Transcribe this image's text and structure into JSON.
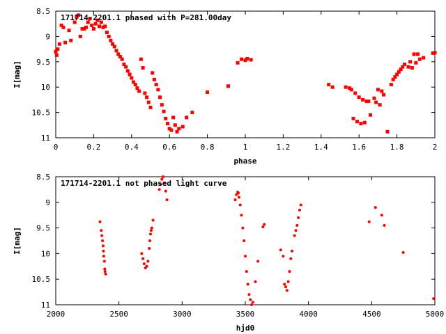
{
  "chart_data": [
    {
      "type": "scatter",
      "title": "171714-2201.1 phased with P=281.00day",
      "xlabel": "phase",
      "ylabel": "I[mag]",
      "xlim": [
        0,
        2
      ],
      "ylim": [
        11,
        8.5
      ],
      "y_inverted": true,
      "xticks": [
        "0",
        "0.2",
        "0.4",
        "0.6",
        "0.8",
        "1",
        "1.2",
        "1.4",
        "1.6",
        "1.8",
        "2"
      ],
      "yticks": [
        "8.5",
        "9",
        "9.5",
        "10",
        "10.5",
        "11"
      ],
      "grid": false,
      "marker_color": "#ff0000",
      "series": [
        {
          "points": [
            [
              0.0,
              9.3
            ],
            [
              0.005,
              9.37
            ],
            [
              0.01,
              9.25
            ],
            [
              0.02,
              9.15
            ],
            [
              0.03,
              8.78
            ],
            [
              0.04,
              8.82
            ],
            [
              0.05,
              9.12
            ],
            [
              0.07,
              8.88
            ],
            [
              0.08,
              9.08
            ],
            [
              0.1,
              8.72
            ],
            [
              0.11,
              8.62
            ],
            [
              0.12,
              8.58
            ],
            [
              0.13,
              9.0
            ],
            [
              0.14,
              8.85
            ],
            [
              0.15,
              8.85
            ],
            [
              0.16,
              8.82
            ],
            [
              0.17,
              8.72
            ],
            [
              0.18,
              8.65
            ],
            [
              0.19,
              8.78
            ],
            [
              0.2,
              8.85
            ],
            [
              0.21,
              8.75
            ],
            [
              0.22,
              8.68
            ],
            [
              0.23,
              8.8
            ],
            [
              0.24,
              8.72
            ],
            [
              0.25,
              8.82
            ],
            [
              0.26,
              8.8
            ],
            [
              0.27,
              8.92
            ],
            [
              0.28,
              9.0
            ],
            [
              0.29,
              9.08
            ],
            [
              0.3,
              9.15
            ],
            [
              0.31,
              9.2
            ],
            [
              0.32,
              9.28
            ],
            [
              0.33,
              9.35
            ],
            [
              0.34,
              9.4
            ],
            [
              0.35,
              9.45
            ],
            [
              0.36,
              9.55
            ],
            [
              0.37,
              9.6
            ],
            [
              0.38,
              9.68
            ],
            [
              0.39,
              9.75
            ],
            [
              0.4,
              9.82
            ],
            [
              0.41,
              9.9
            ],
            [
              0.42,
              9.95
            ],
            [
              0.43,
              10.02
            ],
            [
              0.44,
              10.08
            ],
            [
              0.45,
              9.45
            ],
            [
              0.46,
              9.62
            ],
            [
              0.47,
              10.12
            ],
            [
              0.48,
              10.2
            ],
            [
              0.49,
              10.3
            ],
            [
              0.5,
              10.4
            ],
            [
              0.51,
              9.72
            ],
            [
              0.52,
              9.85
            ],
            [
              0.53,
              9.95
            ],
            [
              0.54,
              10.05
            ],
            [
              0.55,
              10.2
            ],
            [
              0.56,
              10.35
            ],
            [
              0.57,
              10.48
            ],
            [
              0.58,
              10.62
            ],
            [
              0.59,
              10.72
            ],
            [
              0.6,
              10.82
            ],
            [
              0.61,
              10.85
            ],
            [
              0.62,
              10.6
            ],
            [
              0.63,
              10.75
            ],
            [
              0.64,
              10.88
            ],
            [
              0.65,
              10.82
            ],
            [
              0.67,
              10.78
            ],
            [
              0.69,
              10.6
            ],
            [
              0.72,
              10.5
            ],
            [
              0.8,
              10.1
            ],
            [
              0.91,
              9.98
            ],
            [
              0.96,
              9.52
            ],
            [
              0.98,
              9.45
            ],
            [
              1.0,
              9.47
            ],
            [
              1.01,
              9.44
            ],
            [
              1.03,
              9.46
            ],
            [
              1.44,
              9.95
            ],
            [
              1.46,
              10.0
            ],
            [
              1.53,
              10.0
            ],
            [
              1.55,
              10.02
            ],
            [
              1.56,
              10.05
            ],
            [
              1.57,
              10.62
            ],
            [
              1.58,
              10.12
            ],
            [
              1.59,
              10.68
            ],
            [
              1.6,
              10.2
            ],
            [
              1.61,
              10.72
            ],
            [
              1.62,
              10.25
            ],
            [
              1.63,
              10.7
            ],
            [
              1.64,
              10.28
            ],
            [
              1.65,
              10.28
            ],
            [
              1.66,
              10.55
            ],
            [
              1.68,
              10.22
            ],
            [
              1.69,
              10.3
            ],
            [
              1.7,
              10.05
            ],
            [
              1.71,
              10.35
            ],
            [
              1.72,
              10.08
            ],
            [
              1.73,
              10.15
            ],
            [
              1.75,
              10.88
            ],
            [
              1.77,
              9.95
            ],
            [
              1.78,
              9.85
            ],
            [
              1.79,
              9.8
            ],
            [
              1.8,
              9.75
            ],
            [
              1.81,
              9.7
            ],
            [
              1.82,
              9.65
            ],
            [
              1.83,
              9.6
            ],
            [
              1.84,
              9.55
            ],
            [
              1.86,
              9.6
            ],
            [
              1.87,
              9.5
            ],
            [
              1.88,
              9.62
            ],
            [
              1.89,
              9.35
            ],
            [
              1.9,
              9.52
            ],
            [
              1.91,
              9.35
            ],
            [
              1.92,
              9.45
            ],
            [
              1.94,
              9.42
            ],
            [
              1.99,
              9.33
            ],
            [
              2.0,
              9.32
            ]
          ]
        }
      ]
    },
    {
      "type": "scatter",
      "title": "171714-2201.1 not phased light curve",
      "xlabel": "hjd0",
      "ylabel": "I[mag]",
      "xlim": [
        2000,
        5000
      ],
      "ylim": [
        11,
        8.5
      ],
      "y_inverted": true,
      "xticks": [
        "2000",
        "2500",
        "3000",
        "3500",
        "4000",
        "4500",
        "5000"
      ],
      "yticks": [
        "8.5",
        "9",
        "9.5",
        "10",
        "10.5",
        "11"
      ],
      "grid": false,
      "marker_color": "#ff0000",
      "series": [
        {
          "points": [
            [
              2350,
              9.38
            ],
            [
              2360,
              9.55
            ],
            [
              2365,
              9.65
            ],
            [
              2370,
              9.75
            ],
            [
              2375,
              9.85
            ],
            [
              2378,
              9.95
            ],
            [
              2380,
              10.05
            ],
            [
              2385,
              10.15
            ],
            [
              2388,
              10.3
            ],
            [
              2390,
              10.35
            ],
            [
              2395,
              10.4
            ],
            [
              2680,
              10.0
            ],
            [
              2690,
              10.1
            ],
            [
              2700,
              10.2
            ],
            [
              2710,
              10.28
            ],
            [
              2720,
              10.25
            ],
            [
              2730,
              10.15
            ],
            [
              2740,
              9.9
            ],
            [
              2745,
              9.75
            ],
            [
              2750,
              9.62
            ],
            [
              2755,
              9.55
            ],
            [
              2760,
              9.5
            ],
            [
              2770,
              9.35
            ],
            [
              2820,
              8.75
            ],
            [
              2830,
              8.65
            ],
            [
              2840,
              8.55
            ],
            [
              2850,
              8.5
            ],
            [
              2860,
              8.62
            ],
            [
              2870,
              8.78
            ],
            [
              2880,
              8.95
            ],
            [
              3420,
              8.95
            ],
            [
              3430,
              8.85
            ],
            [
              3440,
              8.8
            ],
            [
              3445,
              8.82
            ],
            [
              3450,
              8.9
            ],
            [
              3460,
              9.05
            ],
            [
              3470,
              9.25
            ],
            [
              3480,
              9.5
            ],
            [
              3490,
              9.75
            ],
            [
              3500,
              10.05
            ],
            [
              3510,
              10.35
            ],
            [
              3520,
              10.6
            ],
            [
              3530,
              10.8
            ],
            [
              3540,
              10.9
            ],
            [
              3550,
              11.0
            ],
            [
              3560,
              10.95
            ],
            [
              3580,
              10.55
            ],
            [
              3600,
              10.15
            ],
            [
              3640,
              9.48
            ],
            [
              3650,
              9.43
            ],
            [
              3780,
              9.93
            ],
            [
              3800,
              10.05
            ],
            [
              3810,
              10.6
            ],
            [
              3820,
              10.65
            ],
            [
              3830,
              10.72
            ],
            [
              3840,
              10.55
            ],
            [
              3850,
              10.35
            ],
            [
              3860,
              10.1
            ],
            [
              3870,
              9.95
            ],
            [
              3890,
              9.65
            ],
            [
              3900,
              9.55
            ],
            [
              3910,
              9.45
            ],
            [
              3920,
              9.3
            ],
            [
              3930,
              9.15
            ],
            [
              3940,
              9.05
            ],
            [
              4480,
              9.38
            ],
            [
              4530,
              9.1
            ],
            [
              4580,
              9.25
            ],
            [
              4600,
              9.45
            ],
            [
              4750,
              9.98
            ],
            [
              4990,
              10.88
            ]
          ]
        }
      ]
    }
  ]
}
